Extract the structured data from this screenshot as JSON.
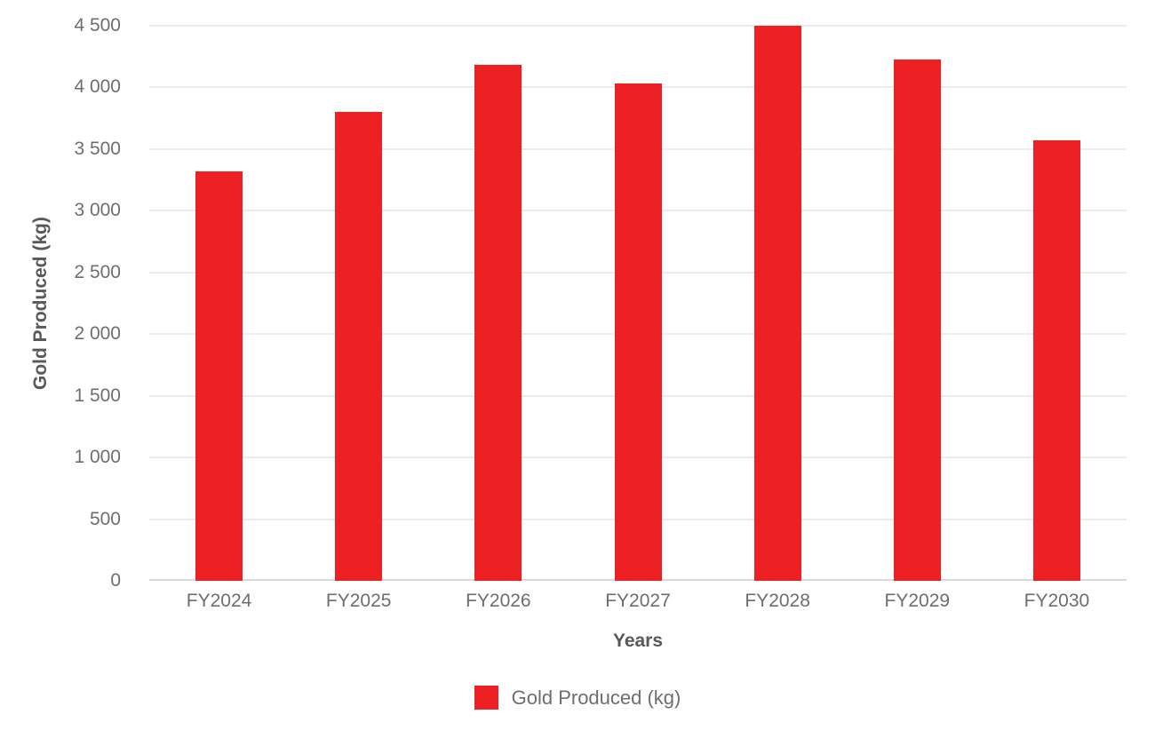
{
  "chart_data": {
    "type": "bar",
    "title": "",
    "categories": [
      "FY2024",
      "FY2025",
      "FY2026",
      "FY2027",
      "FY2028",
      "FY2029",
      "FY2030"
    ],
    "values": [
      3320,
      3800,
      4180,
      4035,
      4500,
      4230,
      3570
    ],
    "series_name": "Gold Produced (kg)",
    "xlabel": "Years",
    "ylabel": "Gold Produced (kg)",
    "ylim": [
      0,
      4500
    ],
    "yticks": {
      "values": [
        0,
        500,
        1000,
        1500,
        2000,
        2500,
        3000,
        3500,
        4000,
        4500
      ],
      "labels": [
        "0",
        "500",
        "1 000",
        "1 500",
        "2 000",
        "2 500",
        "3 000",
        "3 500",
        "4 000",
        "4 500"
      ]
    },
    "grid": true,
    "legend_position": "bottom",
    "bar_color": "#ED2024",
    "colors": {
      "grid": "#ECECEC",
      "axis_line": "#D9D9D9",
      "tick_text": "#6E6E6E",
      "axis_title_text": "#595959"
    }
  }
}
